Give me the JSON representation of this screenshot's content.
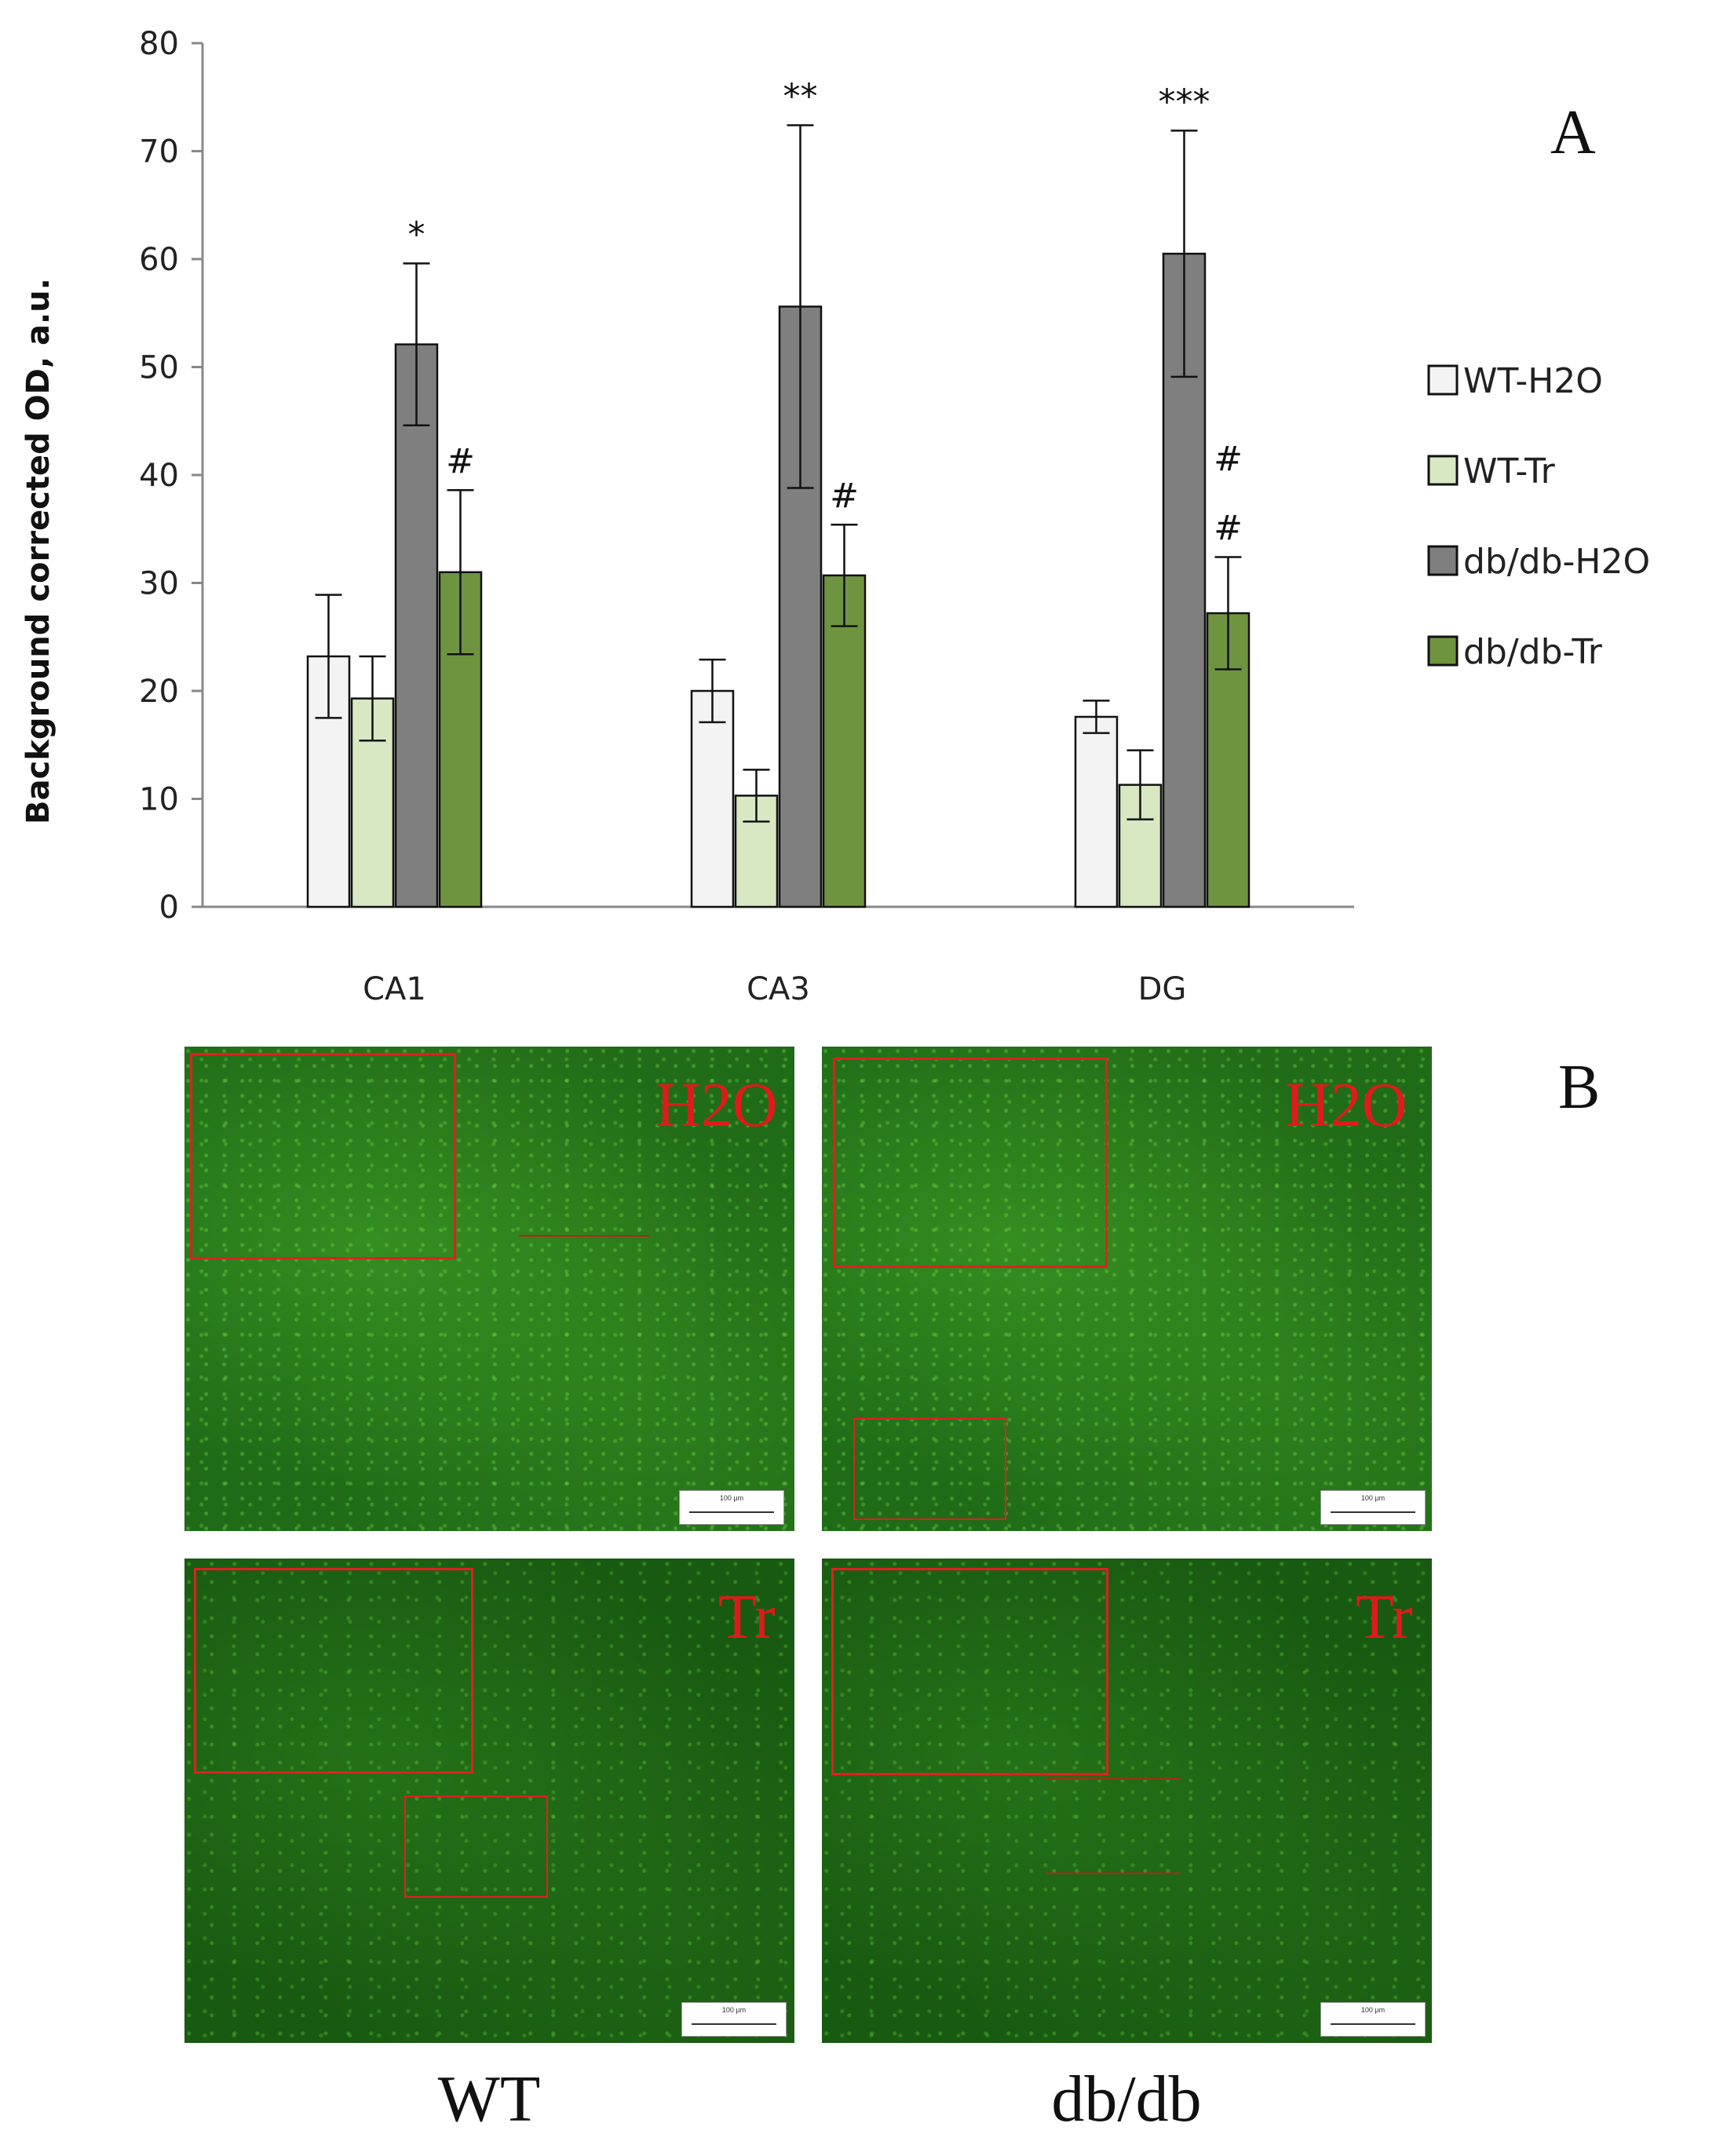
{
  "chart_data": {
    "type": "bar",
    "title": "",
    "xlabel": "",
    "ylabel": "Background corrected OD, a.u.",
    "ylim": [
      0,
      80
    ],
    "yticks": [
      0,
      10,
      20,
      30,
      40,
      50,
      60,
      70,
      80
    ],
    "categories": [
      "CA1",
      "CA3",
      "DG"
    ],
    "series": [
      {
        "name": "WT-H2O",
        "color": "#f3f3f3",
        "values": [
          23.2,
          20.0,
          17.6
        ],
        "errors": [
          5.7,
          2.9,
          1.5
        ]
      },
      {
        "name": "WT-Tr",
        "color": "#d8e8c2",
        "values": [
          19.3,
          10.3,
          11.3
        ],
        "errors": [
          3.9,
          2.4,
          3.2
        ]
      },
      {
        "name": "db/db-H2O",
        "color": "#7f7f7f",
        "values": [
          52.1,
          55.6,
          60.5
        ],
        "errors": [
          7.5,
          16.8,
          11.4
        ]
      },
      {
        "name": "db/db-Tr",
        "color": "#6f9440",
        "values": [
          31.0,
          30.7,
          27.2
        ],
        "errors": [
          7.6,
          4.7,
          5.2
        ]
      }
    ],
    "annotations": [
      {
        "category": "CA1",
        "series": "db/db-H2O",
        "text": "*"
      },
      {
        "category": "CA1",
        "series": "db/db-Tr",
        "text": "#"
      },
      {
        "category": "CA3",
        "series": "db/db-H2O",
        "text": "**"
      },
      {
        "category": "CA3",
        "series": "db/db-Tr",
        "text": "#"
      },
      {
        "category": "DG",
        "series": "db/db-H2O",
        "text": "***"
      },
      {
        "category": "DG",
        "series": "db/db-Tr",
        "text": "#"
      },
      {
        "category": "DG",
        "series": "db/db-Tr",
        "text": "#"
      }
    ],
    "legend_position": "right",
    "grid": false
  },
  "panel_a_label": "A",
  "panel_b_label": "B",
  "micrographs": {
    "wt_h2o_label": "H2O",
    "db_h2o_label": "H2O",
    "wt_tr_label": "Tr",
    "db_tr_label": "Tr"
  },
  "column_labels": {
    "wt": "WT",
    "db": "db/db"
  }
}
